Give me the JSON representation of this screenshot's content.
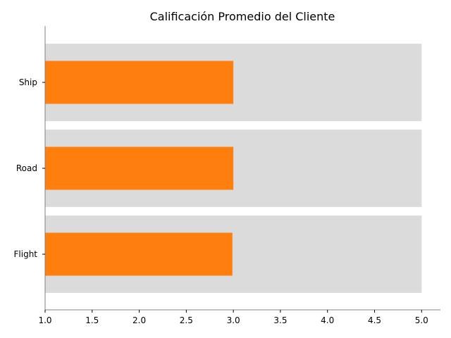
{
  "chart_data": {
    "type": "bar",
    "orientation": "horizontal",
    "title": "Calificación Promedio del Cliente",
    "categories": [
      "Flight",
      "Road",
      "Ship"
    ],
    "values": [
      2.99,
      3.0,
      3.0
    ],
    "background_max": 5.0,
    "xlim": [
      1.0,
      5.2
    ],
    "xticks": [
      "1.0",
      "1.5",
      "2.0",
      "2.5",
      "3.0",
      "3.5",
      "4.0",
      "4.5",
      "5.0"
    ],
    "xlabel": "",
    "ylabel": "",
    "grid": false,
    "legend": false,
    "colors": {
      "bar": "#ff7f0e",
      "background_bar": "#dbdbdb",
      "axis": "#808080"
    }
  }
}
